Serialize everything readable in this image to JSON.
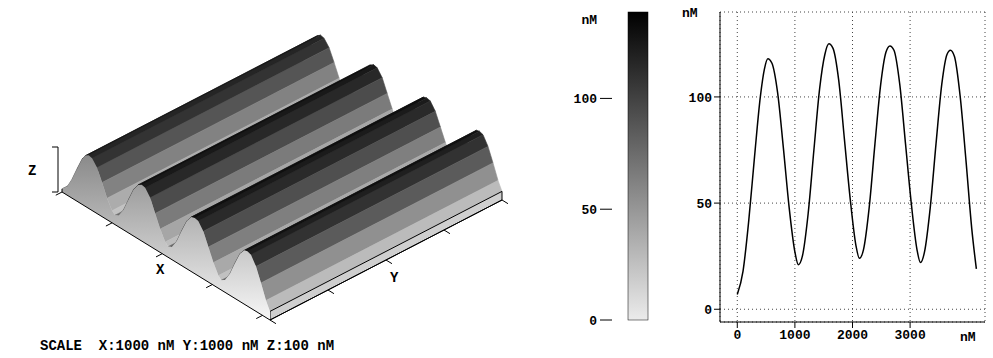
{
  "chart_data": [
    {
      "type": "surface",
      "axis_labels": {
        "x": "X",
        "y": "Y",
        "z": "Z"
      },
      "scale_text": "SCALE  X:1000 nM Y:1000 nM Z:100 nM",
      "xlim": [
        0,
        4150
      ],
      "ylim": [
        0,
        4000
      ],
      "zlim": [
        0,
        100
      ],
      "xticks": [
        0,
        1000,
        2000,
        3000,
        4000
      ],
      "yticks": [
        0,
        1000,
        2000,
        3000,
        4000
      ],
      "tick_labels": false,
      "colorbar": {
        "label": "nM",
        "range": [
          0,
          139
        ],
        "ticks": [
          0,
          50,
          100
        ]
      }
    },
    {
      "type": "line",
      "y_label": "nM",
      "x_label": "nM",
      "x": [
        0,
        100,
        200,
        300,
        400,
        470,
        530,
        600,
        700,
        800,
        900,
        1000,
        1060,
        1130,
        1230,
        1330,
        1430,
        1520,
        1590,
        1660,
        1760,
        1860,
        1960,
        2060,
        2120,
        2190,
        2290,
        2390,
        2490,
        2580,
        2650,
        2720,
        2820,
        2920,
        3020,
        3120,
        3180,
        3250,
        3350,
        3450,
        3550,
        3640,
        3700,
        3770,
        3870,
        3970,
        4070,
        4150
      ],
      "values": [
        7,
        18,
        42,
        72,
        100,
        113,
        118,
        116,
        102,
        76,
        48,
        27,
        21,
        25,
        45,
        75,
        104,
        120,
        125,
        123,
        108,
        80,
        52,
        30,
        24,
        28,
        48,
        78,
        106,
        121,
        124,
        122,
        106,
        78,
        50,
        28,
        22,
        27,
        48,
        78,
        106,
        120,
        122,
        119,
        100,
        70,
        38,
        19
      ],
      "color": "#000000",
      "xlim": [
        -300,
        4300
      ],
      "ylim": [
        -6,
        140
      ],
      "xticks": [
        0,
        1000,
        2000,
        3000
      ],
      "yticks": [
        0,
        50,
        100
      ],
      "grid": true
    }
  ]
}
